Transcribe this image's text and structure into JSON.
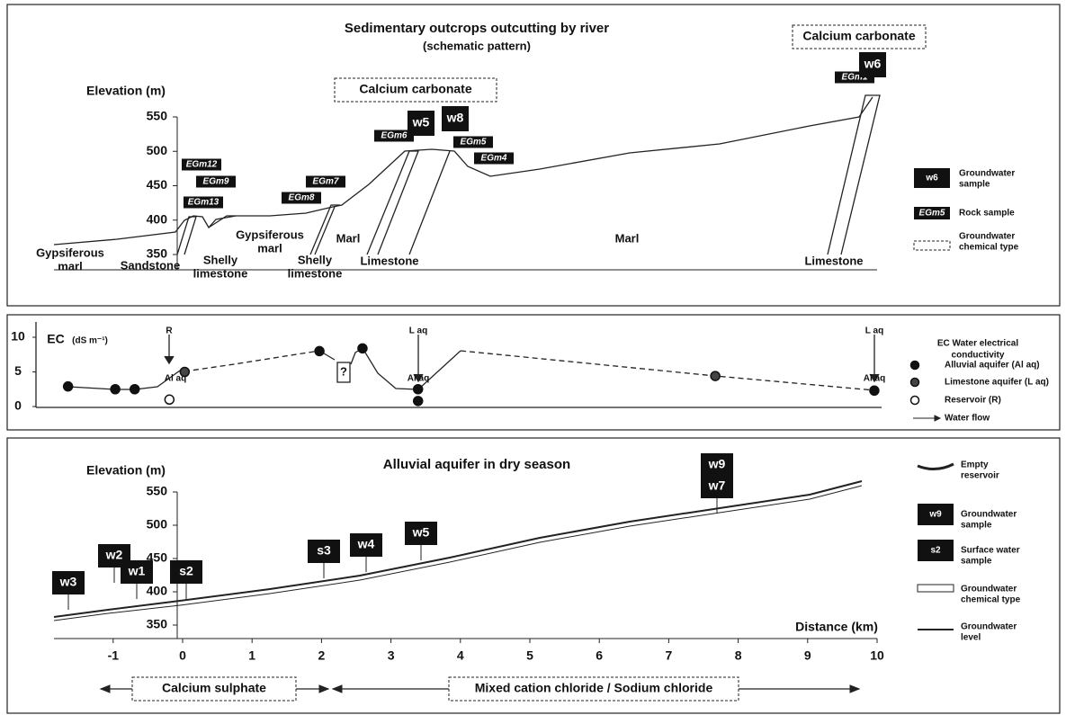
{
  "panel_top": {
    "title": "Sedimentary outcrops outcutting by river",
    "subtitle": "(schematic pattern)",
    "y_label": "Elevation (m)",
    "yticks": [
      350,
      400,
      450,
      500,
      550
    ],
    "chemical_types": [
      "Calcium carbonate",
      "Calcium carbonate"
    ],
    "rock_samples": [
      "EGm12",
      "EGm9",
      "EGm13",
      "EGm7",
      "EGm8",
      "EGm6",
      "EGm5",
      "EGm4",
      "EGm1"
    ],
    "groundwater_samples": [
      "w5",
      "w8",
      "w6"
    ],
    "formations": [
      [
        "Gypsiferous",
        "marl"
      ],
      [
        "Sandstone"
      ],
      [
        "Shelly",
        "limestone"
      ],
      [
        "Gypsiferous",
        "marl"
      ],
      [
        "Marl"
      ],
      [
        "Shelly",
        "limestone"
      ],
      [
        "Limestone"
      ],
      [
        "Marl"
      ],
      [
        "Limestone"
      ]
    ],
    "legend": {
      "groundwater_sample": {
        "symbol": "w6",
        "text": [
          "Groundwater",
          "sample"
        ]
      },
      "rock_sample": {
        "symbol": "EGm5",
        "text": [
          "Rock sample"
        ]
      },
      "chemical_type": {
        "text": [
          "Groundwater",
          "chemical type"
        ]
      }
    }
  },
  "panel_ec": {
    "y_label": "EC",
    "y_unit": "(dS m⁻¹)",
    "yticks": [
      0,
      5,
      10
    ],
    "flow_labels": [
      "R",
      "L aq",
      "L aq"
    ],
    "aquifer_labels": [
      "Al aq",
      "Al aq",
      "Al aq"
    ],
    "question": "?",
    "points": [
      {
        "distance": -1.65,
        "ec": 2.9,
        "kind": "alluvial"
      },
      {
        "distance": -0.97,
        "ec": 2.5,
        "kind": "alluvial"
      },
      {
        "distance": -0.69,
        "ec": 2.5,
        "kind": "alluvial"
      },
      {
        "distance": -0.19,
        "ec": 1,
        "kind": "reservoir"
      },
      {
        "distance": 0.03,
        "ec": 5,
        "kind": "limestone"
      },
      {
        "distance": 1.97,
        "ec": 8,
        "kind": "alluvial"
      },
      {
        "distance": 2.59,
        "ec": 8.4,
        "kind": "alluvial"
      },
      {
        "distance": 3.39,
        "ec": 2.5,
        "kind": "alluvial"
      },
      {
        "distance": 3.39,
        "ec": 0.8,
        "kind": "alluvial"
      },
      {
        "distance": 7.67,
        "ec": 4.4,
        "kind": "limestone"
      },
      {
        "distance": 9.96,
        "ec": 2.3,
        "kind": "alluvial"
      }
    ],
    "legend": [
      [
        "EC Water electrical",
        "conductivity"
      ],
      [
        "Alluvial aquifer (Al aq)"
      ],
      [
        "Limestone aquifer (L aq)"
      ],
      [
        "Reservoir (R)"
      ],
      [
        "Water flow"
      ]
    ]
  },
  "panel_bottom": {
    "title": "Alluvial aquifer in dry season",
    "y_label": "Elevation (m)",
    "yticks": [
      350,
      400,
      450,
      500,
      550
    ],
    "x_label": "Distance (km)",
    "xticks": [
      -1,
      0,
      1,
      2,
      3,
      4,
      5,
      6,
      7,
      8,
      9,
      10
    ],
    "samples": [
      "w3",
      "w2",
      "w1",
      "s2",
      "s3",
      "w4",
      "w5",
      "w9",
      "w7"
    ],
    "chemical_types": [
      "Calcium sulphate",
      "Mixed cation chloride / Sodium chloride"
    ],
    "legend": [
      {
        "text": [
          "Empty",
          "reservoir"
        ]
      },
      {
        "symbol": "w9",
        "text": [
          "Groundwater",
          "sample"
        ]
      },
      {
        "symbol": "s2",
        "text": [
          "Surface water",
          "sample"
        ]
      },
      {
        "text": [
          "Groundwater",
          "chemical type"
        ]
      },
      {
        "text": [
          "Groundwater",
          "level"
        ]
      }
    ]
  }
}
